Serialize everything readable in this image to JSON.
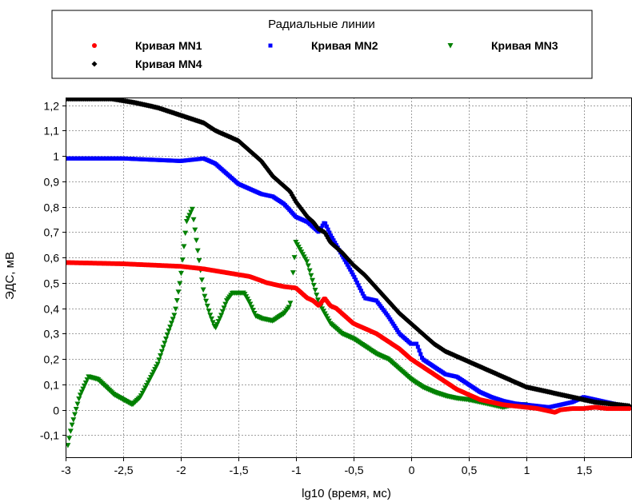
{
  "chart_data": {
    "type": "scatter",
    "legend": {
      "title": "Радиальные линии",
      "placement": "top",
      "entries": [
        "Кривая MN1",
        "Кривая MN2",
        "Кривая MN3",
        "Кривая MN4"
      ]
    },
    "xlabel": "lg10 (время, мс)",
    "ylabel": "ЭДС, мВ",
    "xlim": [
      -3,
      1.92
    ],
    "ylim": [
      -0.19,
      1.23
    ],
    "xticks": [
      -3,
      -2.5,
      -2,
      -1.5,
      -1,
      -0.5,
      0,
      0.5,
      1,
      1.5
    ],
    "xtick_labels": [
      "-3",
      "-2,5",
      "-2",
      "-1,5",
      "-1",
      "-0,5",
      "0",
      "0,5",
      "1",
      "1,5"
    ],
    "yticks": [
      -0.1,
      0,
      0.1,
      0.2,
      0.3,
      0.4,
      0.5,
      0.6,
      0.7,
      0.8,
      0.9,
      1,
      1.1,
      1.2
    ],
    "ytick_labels": [
      "-0,1",
      "0",
      "0,1",
      "0,2",
      "0,3",
      "0,4",
      "0,5",
      "0,6",
      "0,7",
      "0,8",
      "0,9",
      "1",
      "1,1",
      "1,2"
    ],
    "grid": true,
    "series": [
      {
        "name": "Кривая MN1",
        "color": "#ff0000",
        "marker": "circle",
        "x": [
          -3,
          -2.5,
          -2,
          -1.8,
          -1.6,
          -1.4,
          -1.25,
          -1.1,
          -1,
          -0.9,
          -0.85,
          -0.8,
          -0.75,
          -0.7,
          -0.65,
          -0.6,
          -0.55,
          -0.5,
          -0.4,
          -0.3,
          -0.2,
          -0.1,
          0,
          0.1,
          0.2,
          0.3,
          0.4,
          0.5,
          0.6,
          0.7,
          0.8,
          0.9,
          1,
          1.1,
          1.2,
          1.25,
          1.3,
          1.4,
          1.5,
          1.6,
          1.7,
          1.8,
          1.9
        ],
        "y": [
          0.58,
          0.575,
          0.565,
          0.555,
          0.54,
          0.525,
          0.5,
          0.485,
          0.48,
          0.44,
          0.43,
          0.41,
          0.44,
          0.41,
          0.4,
          0.38,
          0.36,
          0.34,
          0.32,
          0.3,
          0.27,
          0.24,
          0.2,
          0.17,
          0.14,
          0.11,
          0.08,
          0.06,
          0.04,
          0.03,
          0.02,
          0.015,
          0.01,
          0.005,
          -0.005,
          -0.01,
          0.0,
          0.005,
          0.005,
          0.01,
          0.005,
          0.005,
          0.005
        ]
      },
      {
        "name": "Кривая MN2",
        "color": "#0000ff",
        "marker": "square",
        "x": [
          -3,
          -2.5,
          -2,
          -1.9,
          -1.8,
          -1.7,
          -1.6,
          -1.5,
          -1.4,
          -1.3,
          -1.2,
          -1.1,
          -1,
          -0.9,
          -0.8,
          -0.75,
          -0.7,
          -0.6,
          -0.5,
          -0.4,
          -0.3,
          -0.2,
          -0.1,
          0,
          0.05,
          0.1,
          0.2,
          0.3,
          0.4,
          0.5,
          0.6,
          0.7,
          0.8,
          0.9,
          1,
          1.1,
          1.2,
          1.3,
          1.4,
          1.5,
          1.6,
          1.7,
          1.8,
          1.9
        ],
        "y": [
          0.99,
          0.99,
          0.98,
          0.985,
          0.99,
          0.97,
          0.93,
          0.89,
          0.87,
          0.85,
          0.84,
          0.81,
          0.76,
          0.74,
          0.7,
          0.74,
          0.69,
          0.61,
          0.53,
          0.44,
          0.43,
          0.37,
          0.3,
          0.26,
          0.26,
          0.2,
          0.17,
          0.14,
          0.13,
          0.1,
          0.07,
          0.05,
          0.035,
          0.025,
          0.02,
          0.015,
          0.01,
          0.02,
          0.03,
          0.05,
          0.04,
          0.03,
          0.02,
          0.01
        ]
      },
      {
        "name": "Кривая MN3",
        "color": "#008000",
        "marker": "triangle-down",
        "x": [
          -2.98,
          -2.95,
          -2.88,
          -2.8,
          -2.72,
          -2.65,
          -2.58,
          -2.5,
          -2.42,
          -2.35,
          -2.28,
          -2.2,
          -2.12,
          -2.05,
          -2.0,
          -1.95,
          -1.9,
          -1.85,
          -1.8,
          -1.75,
          -1.7,
          -1.65,
          -1.6,
          -1.55,
          -1.5,
          -1.45,
          -1.4,
          -1.35,
          -1.3,
          -1.2,
          -1.1,
          -1.05,
          -1.0,
          -0.95,
          -0.9,
          -0.8,
          -0.7,
          -0.6,
          -0.5,
          -0.4,
          -0.3,
          -0.2,
          -0.1,
          0,
          0.1,
          0.2,
          0.3,
          0.4,
          0.5,
          0.6,
          0.7,
          0.8,
          0.9,
          1.0
        ],
        "y": [
          -0.14,
          -0.07,
          0.05,
          0.13,
          0.12,
          0.09,
          0.06,
          0.04,
          0.02,
          0.05,
          0.11,
          0.18,
          0.29,
          0.38,
          0.52,
          0.74,
          0.79,
          0.62,
          0.46,
          0.38,
          0.32,
          0.37,
          0.43,
          0.46,
          0.46,
          0.46,
          0.42,
          0.37,
          0.36,
          0.35,
          0.38,
          0.41,
          0.66,
          0.62,
          0.58,
          0.42,
          0.34,
          0.3,
          0.28,
          0.25,
          0.22,
          0.2,
          0.16,
          0.12,
          0.09,
          0.07,
          0.055,
          0.045,
          0.04,
          0.03,
          0.02,
          0.01,
          0.02,
          0.02
        ]
      },
      {
        "name": "Кривая MN4",
        "color": "#000000",
        "marker": "diamond",
        "x": [
          -3,
          -2.8,
          -2.6,
          -2.4,
          -2.2,
          -2.0,
          -1.8,
          -1.7,
          -1.6,
          -1.5,
          -1.4,
          -1.3,
          -1.2,
          -1.1,
          -1.05,
          -1.0,
          -0.95,
          -0.9,
          -0.85,
          -0.8,
          -0.75,
          -0.7,
          -0.6,
          -0.5,
          -0.4,
          -0.3,
          -0.2,
          -0.1,
          0,
          0.1,
          0.2,
          0.3,
          0.4,
          0.5,
          0.6,
          0.7,
          0.8,
          0.9,
          1.0,
          1.1,
          1.2,
          1.3,
          1.4,
          1.5,
          1.6,
          1.7,
          1.8,
          1.9
        ],
        "y": [
          1.225,
          1.225,
          1.225,
          1.21,
          1.19,
          1.16,
          1.13,
          1.1,
          1.08,
          1.06,
          1.02,
          0.98,
          0.92,
          0.88,
          0.86,
          0.82,
          0.79,
          0.76,
          0.74,
          0.71,
          0.7,
          0.66,
          0.62,
          0.57,
          0.53,
          0.48,
          0.43,
          0.38,
          0.34,
          0.3,
          0.26,
          0.23,
          0.21,
          0.19,
          0.17,
          0.15,
          0.13,
          0.11,
          0.09,
          0.08,
          0.07,
          0.06,
          0.05,
          0.04,
          0.03,
          0.025,
          0.02,
          0.015
        ]
      }
    ]
  }
}
